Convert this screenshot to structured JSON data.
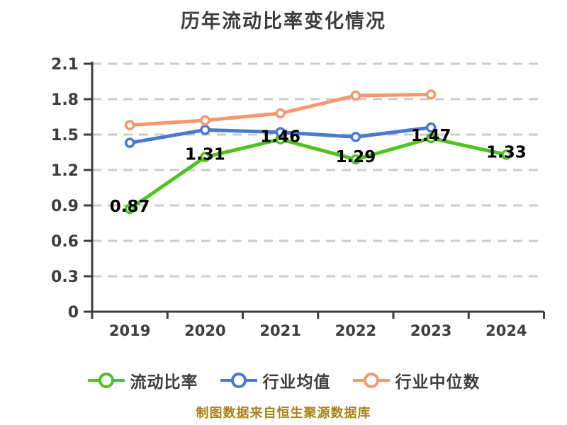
{
  "chart_data": {
    "type": "line",
    "title": "历年流动比率变化情况",
    "x_categories": [
      "2019",
      "2020",
      "2021",
      "2022",
      "2023",
      "2024"
    ],
    "y_ticks": [
      0,
      0.3,
      0.6,
      0.9,
      1.2,
      1.5,
      1.8,
      2.1
    ],
    "ylim": [
      0,
      2.1
    ],
    "xlabel": "",
    "ylabel": "",
    "grid": {
      "horizontal_dashed": true,
      "color": "#cccccc"
    },
    "legend_position": "bottom",
    "axis_color": "#3d3d3d",
    "tick_label_color": "#3d3d3d",
    "point_label_color": "#000000",
    "series": [
      {
        "name": "流动比率",
        "color": "#4ec31c",
        "values": [
          0.87,
          1.31,
          1.46,
          1.29,
          1.47,
          1.33
        ],
        "point_labels": [
          "0.87",
          "1.31",
          "1.46",
          "1.29",
          "1.47",
          "1.33"
        ]
      },
      {
        "name": "行业均值",
        "color": "#4979d1",
        "values": [
          1.43,
          1.54,
          1.52,
          1.48,
          1.56,
          null
        ],
        "point_labels": null
      },
      {
        "name": "行业中位数",
        "color": "#f7986b",
        "values": [
          1.58,
          1.62,
          1.68,
          1.83,
          1.84,
          null
        ],
        "point_labels": null
      }
    ]
  },
  "footer": {
    "text": "制图数据来自恒生聚源数据库",
    "color": "#a8821a"
  }
}
